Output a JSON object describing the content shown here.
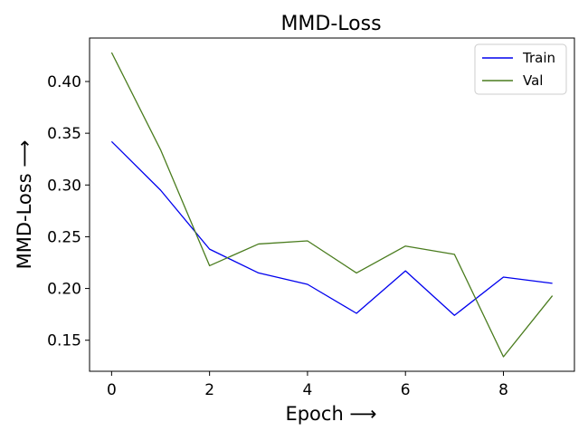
{
  "chart_data": {
    "type": "line",
    "title": "MMD-Loss",
    "xlabel": "Epoch ⟶",
    "ylabel": "MMD-Loss ⟶",
    "x": [
      0,
      1,
      2,
      3,
      4,
      5,
      6,
      7,
      8,
      9
    ],
    "xlim": [
      -0.45,
      9.45
    ],
    "ylim": [
      0.12,
      0.442
    ],
    "xticks": [
      0,
      2,
      4,
      6,
      8
    ],
    "yticks": [
      0.15,
      0.2,
      0.25,
      0.3,
      0.35,
      0.4
    ],
    "xtick_labels": [
      "0",
      "2",
      "4",
      "6",
      "8"
    ],
    "ytick_labels": [
      "0.15",
      "0.20",
      "0.25",
      "0.30",
      "0.35",
      "0.40"
    ],
    "grid": false,
    "legend_position": "top-right",
    "series": [
      {
        "name": "Train",
        "color": "#0000ee",
        "values": [
          0.342,
          0.295,
          0.238,
          0.215,
          0.204,
          0.176,
          0.217,
          0.174,
          0.211,
          0.205
        ]
      },
      {
        "name": "Val",
        "color": "#4a7c1e",
        "values": [
          0.428,
          0.334,
          0.222,
          0.243,
          0.246,
          0.215,
          0.241,
          0.233,
          0.134,
          0.193
        ]
      }
    ]
  }
}
